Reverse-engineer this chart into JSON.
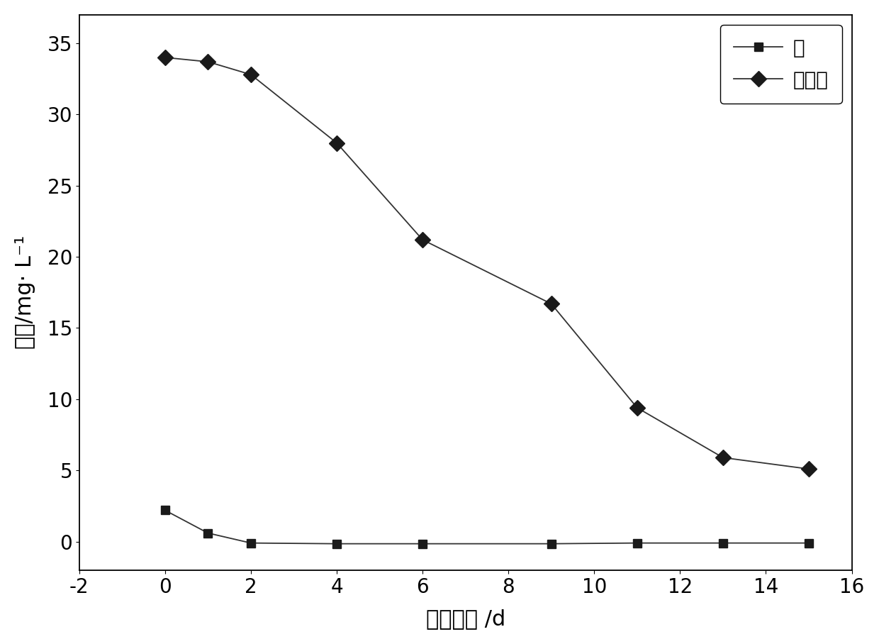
{
  "arsenic_x": [
    0,
    1,
    2,
    4,
    6,
    9,
    11,
    13,
    15
  ],
  "arsenic_y": [
    2.2,
    0.6,
    -0.1,
    -0.15,
    -0.15,
    -0.15,
    -0.1,
    -0.1,
    -0.1
  ],
  "nitrate_x": [
    0,
    1,
    2,
    4,
    6,
    9,
    11,
    13,
    15
  ],
  "nitrate_y": [
    34.0,
    33.7,
    32.8,
    28.0,
    21.2,
    16.7,
    9.4,
    5.9,
    5.1
  ],
  "xlim": [
    -2,
    16
  ],
  "ylim": [
    -2,
    37
  ],
  "xticks": [
    -2,
    0,
    2,
    4,
    6,
    8,
    10,
    12,
    14,
    16
  ],
  "yticks": [
    0,
    5,
    10,
    15,
    20,
    25,
    30,
    35
  ],
  "xlabel": "反应时间 /d",
  "ylabel": "浓度/mg· L⁻¹",
  "legend_arsenic": "硒",
  "legend_nitrate": "硝酸盐",
  "line_color": "#333333",
  "marker_color": "#1a1a1a",
  "bg_color": "#ffffff",
  "xlabel_fontsize": 22,
  "ylabel_fontsize": 22,
  "tick_fontsize": 20,
  "legend_fontsize": 20
}
